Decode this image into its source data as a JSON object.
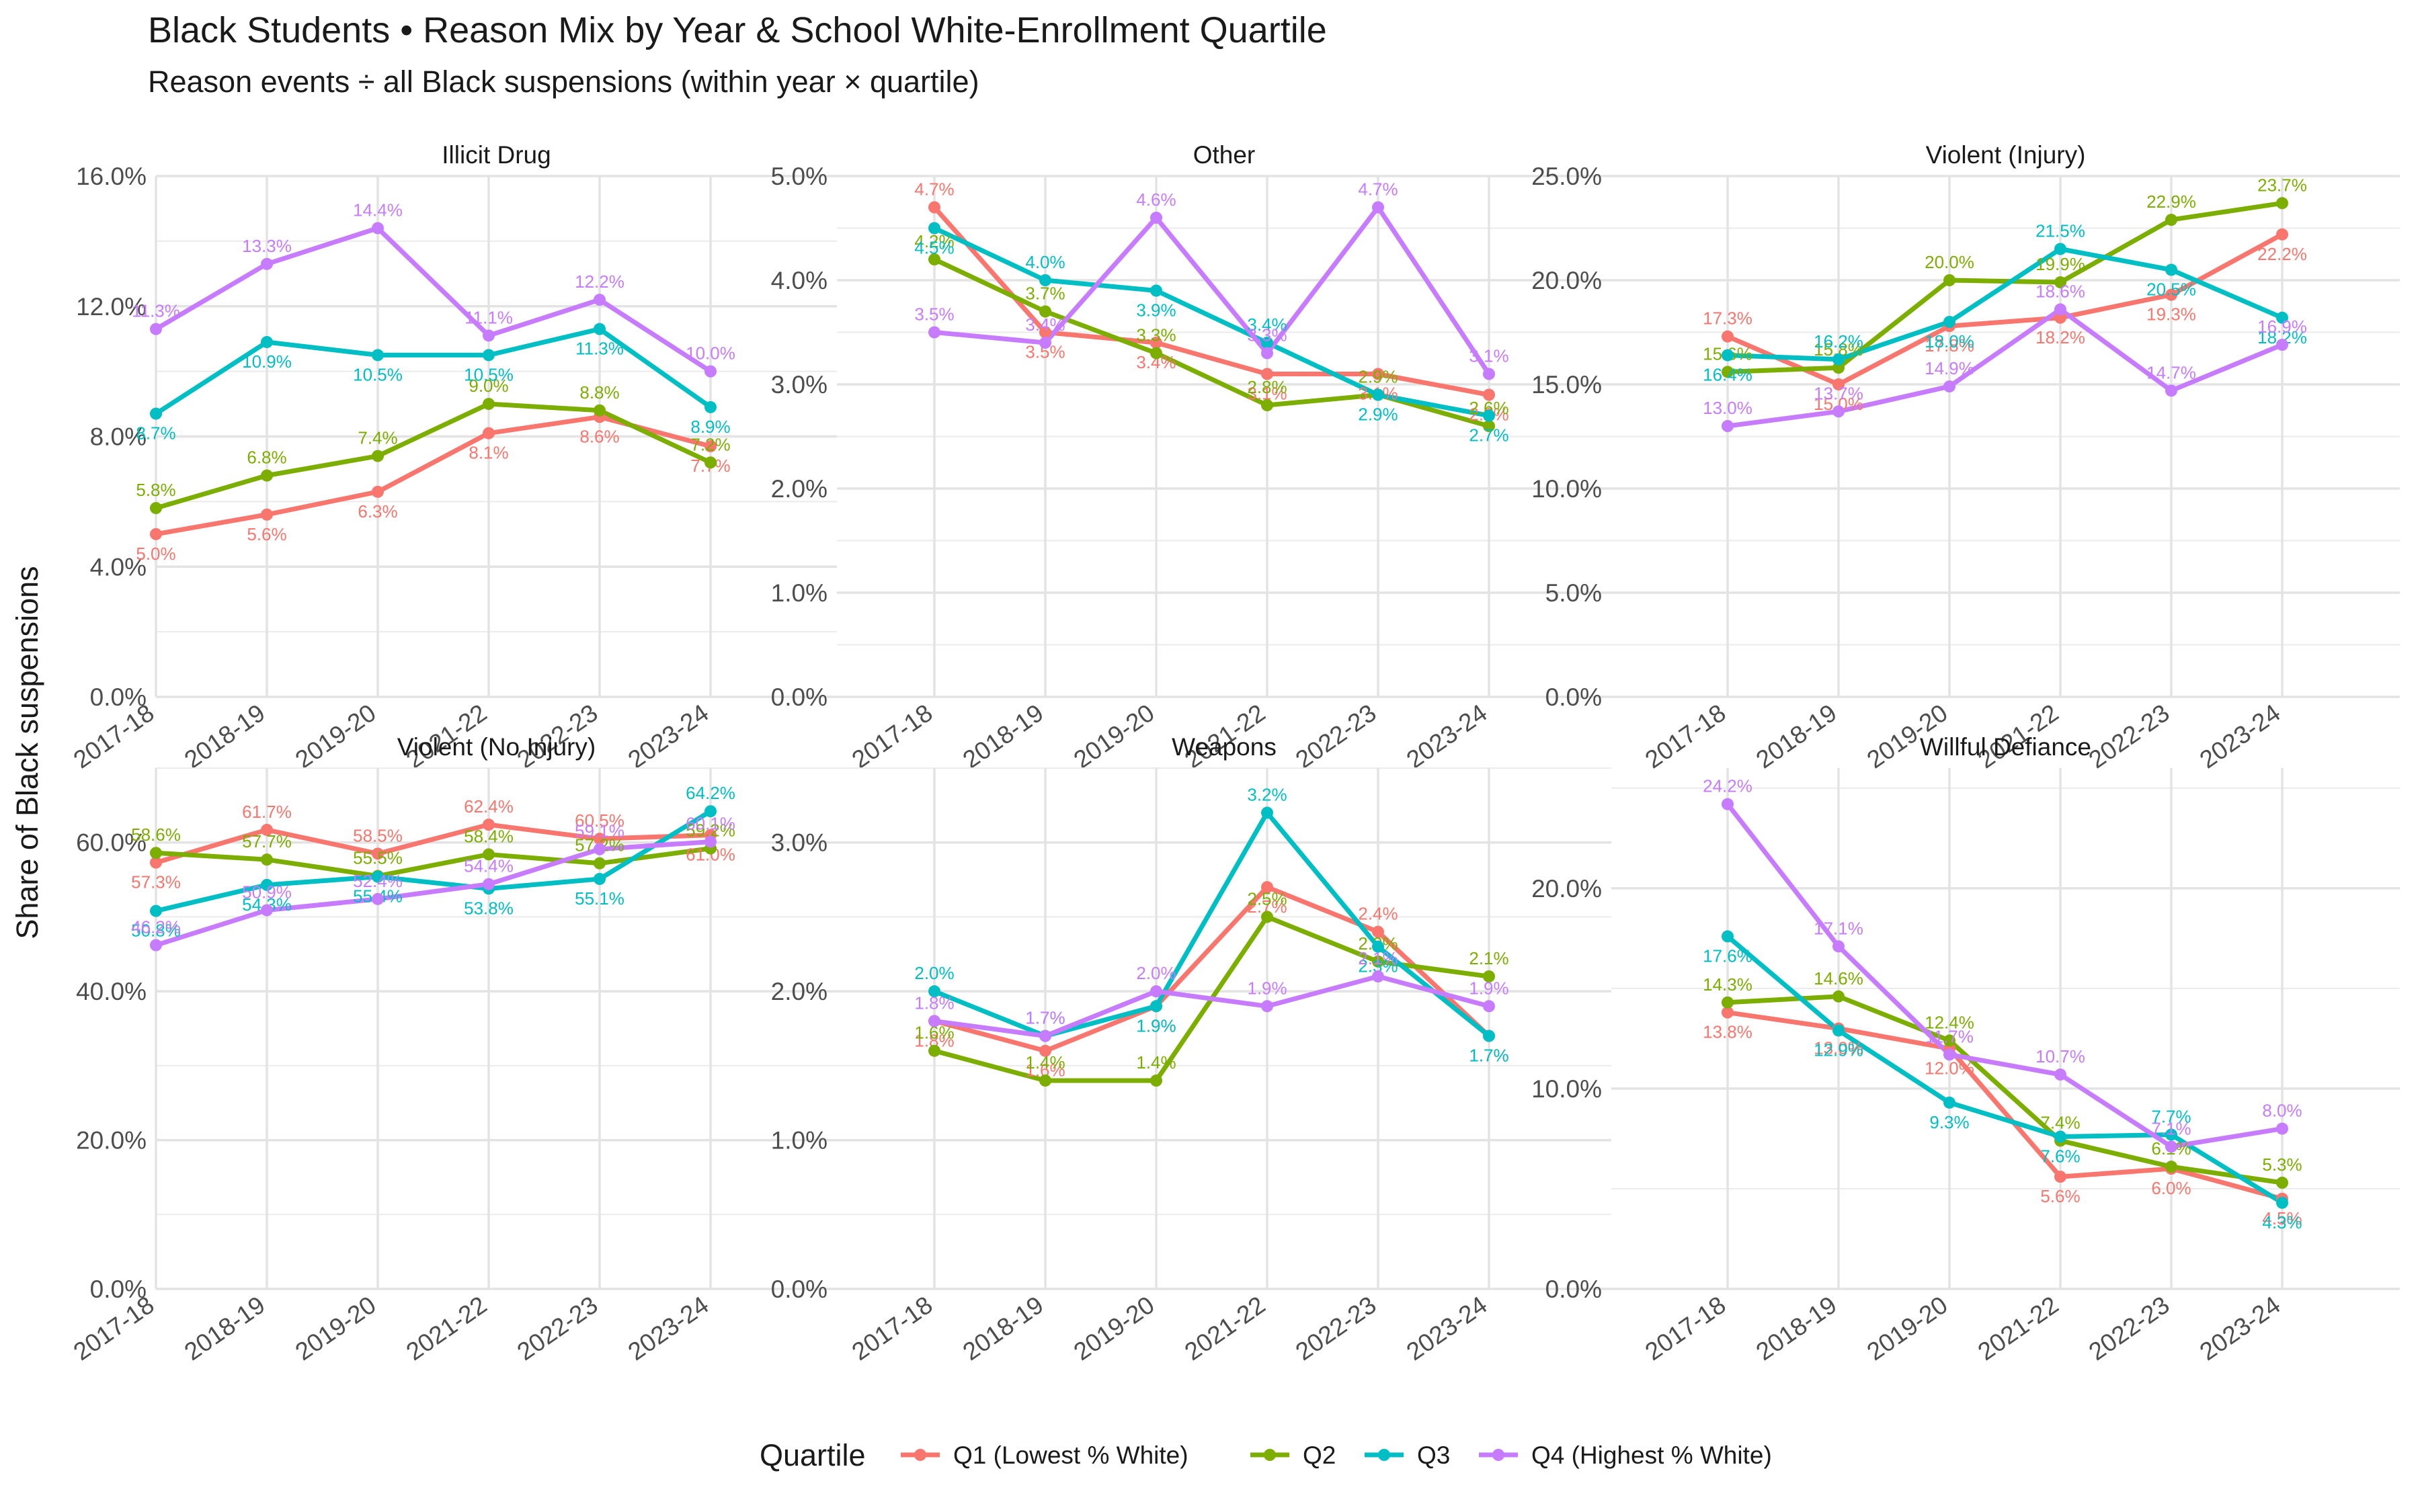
{
  "title": "Black Students • Reason Mix by Year & School White-Enrollment Quartile",
  "subtitle": "Reason events ÷ all Black suspensions (within year × quartile)",
  "chart_data": {
    "type": "line",
    "ylabel": "Share of Black suspensions",
    "x": [
      "2017-18",
      "2018-19",
      "2019-20",
      "2021-22",
      "2022-23",
      "2023-24"
    ],
    "legend": {
      "title": "Quartile",
      "placement": "bottom",
      "items": [
        {
          "name": "Q1 (Lowest % White)",
          "color": "#F8766D"
        },
        {
          "name": "Q2",
          "color": "#7CAE00"
        },
        {
          "name": "Q3",
          "color": "#00BFC4"
        },
        {
          "name": "Q4 (Highest % White)",
          "color": "#C77CFF"
        }
      ]
    },
    "panels": [
      {
        "name": "Illicit Drug",
        "ylim": [
          0,
          0.16
        ],
        "yticks": [
          0,
          0.04,
          0.08,
          0.12,
          0.16
        ],
        "ytick_labels": [
          "0.0%",
          "4.0%",
          "8.0%",
          "12.0%",
          "16.0%"
        ],
        "series": [
          {
            "values": [
              0.05,
              0.056,
              0.063,
              0.081,
              0.086,
              0.077
            ],
            "labels": [
              "5.0%",
              "5.6%",
              "6.3%",
              "8.1%",
              "8.6%",
              "7.7%"
            ]
          },
          {
            "values": [
              0.058,
              0.068,
              0.074,
              0.09,
              0.088,
              0.072
            ],
            "labels": [
              "5.8%",
              "6.8%",
              "7.4%",
              "9.0%",
              "8.8%",
              "7.2%"
            ]
          },
          {
            "values": [
              0.087,
              0.109,
              0.105,
              0.105,
              0.113,
              0.089
            ],
            "labels": [
              "8.7%",
              "10.9%",
              "10.5%",
              "10.5%",
              "11.3%",
              "8.9%"
            ]
          },
          {
            "values": [
              0.113,
              0.133,
              0.144,
              0.111,
              0.122,
              0.1
            ],
            "labels": [
              "11.3%",
              "13.3%",
              "14.4%",
              "11.1%",
              "12.2%",
              "10.0%"
            ]
          }
        ]
      },
      {
        "name": "Other",
        "ylim": [
          0,
          0.05
        ],
        "yticks": [
          0,
          0.01,
          0.02,
          0.03,
          0.04,
          0.05
        ],
        "ytick_labels": [
          "0.0%",
          "1.0%",
          "2.0%",
          "3.0%",
          "4.0%",
          "5.0%"
        ],
        "series": [
          {
            "values": [
              0.047,
              0.035,
              0.034,
              0.031,
              0.031,
              0.029
            ],
            "labels": [
              "4.7%",
              "3.5%",
              "3.4%",
              "3.1%",
              "3.1%",
              "2.9%"
            ]
          },
          {
            "values": [
              0.042,
              0.037,
              0.033,
              0.028,
              0.029,
              0.026
            ],
            "labels": [
              "4.2%",
              "3.7%",
              "3.3%",
              "2.8%",
              "2.9%",
              "2.6%"
            ]
          },
          {
            "values": [
              0.045,
              0.04,
              0.039,
              0.034,
              0.029,
              0.027
            ],
            "labels": [
              "4.5%",
              "4.0%",
              "3.9%",
              "3.4%",
              "2.9%",
              "2.7%"
            ]
          },
          {
            "values": [
              0.035,
              0.034,
              0.046,
              0.033,
              0.047,
              0.031
            ],
            "labels": [
              "3.5%",
              "3.4%",
              "4.6%",
              "3.3%",
              "4.7%",
              "3.1%"
            ]
          }
        ]
      },
      {
        "name": "Violent (Injury)",
        "ylim": [
          0,
          0.25
        ],
        "yticks": [
          0,
          0.05,
          0.1,
          0.15,
          0.2,
          0.25
        ],
        "ytick_labels": [
          "0.0%",
          "5.0%",
          "10.0%",
          "15.0%",
          "20.0%",
          "25.0%"
        ],
        "series": [
          {
            "values": [
              0.173,
              0.15,
              0.178,
              0.182,
              0.193,
              0.222
            ],
            "labels": [
              "17.3%",
              "15.0%",
              "17.8%",
              "18.2%",
              "19.3%",
              "22.2%"
            ]
          },
          {
            "values": [
              0.156,
              0.158,
              0.2,
              0.199,
              0.229,
              0.237
            ],
            "labels": [
              "15.6%",
              "15.8%",
              "20.0%",
              "19.9%",
              "22.9%",
              "23.7%"
            ]
          },
          {
            "values": [
              0.164,
              0.162,
              0.18,
              0.215,
              0.205,
              0.182
            ],
            "labels": [
              "16.4%",
              "16.2%",
              "18.0%",
              "21.5%",
              "20.5%",
              "18.2%"
            ]
          },
          {
            "values": [
              0.13,
              0.137,
              0.149,
              0.186,
              0.147,
              0.169
            ],
            "labels": [
              "13.0%",
              "13.7%",
              "14.9%",
              "18.6%",
              "14.7%",
              "16.9%"
            ]
          }
        ]
      },
      {
        "name": "Violent (No Injury)",
        "ylim": [
          0,
          0.7
        ],
        "yticks": [
          0,
          0.2,
          0.4,
          0.6
        ],
        "ytick_labels": [
          "0.0%",
          "20.0%",
          "40.0%",
          "60.0%"
        ],
        "series": [
          {
            "values": [
              0.573,
              0.617,
              0.585,
              0.624,
              0.605,
              0.61
            ],
            "labels": [
              "57.3%",
              "61.7%",
              "58.5%",
              "62.4%",
              "60.5%",
              "61.0%"
            ]
          },
          {
            "values": [
              0.586,
              0.577,
              0.555,
              0.584,
              0.572,
              0.592
            ],
            "labels": [
              "58.6%",
              "57.7%",
              "55.5%",
              "58.4%",
              "57.2%",
              "59.2%"
            ]
          },
          {
            "values": [
              0.508,
              0.543,
              0.554,
              0.538,
              0.551,
              0.642
            ],
            "labels": [
              "50.8%",
              "54.3%",
              "55.4%",
              "53.8%",
              "55.1%",
              "64.2%"
            ]
          },
          {
            "values": [
              0.462,
              0.509,
              0.524,
              0.544,
              0.591,
              0.601
            ],
            "labels": [
              "46.2%",
              "50.9%",
              "52.4%",
              "54.4%",
              "59.1%",
              "60.1%"
            ]
          }
        ]
      },
      {
        "name": "Weapons",
        "ylim": [
          0,
          0.035
        ],
        "yticks": [
          0,
          0.01,
          0.02,
          0.03
        ],
        "ytick_labels": [
          "0.0%",
          "1.0%",
          "2.0%",
          "3.0%"
        ],
        "series": [
          {
            "values": [
              0.018,
              0.016,
              0.019,
              0.027,
              0.024,
              0.017
            ],
            "labels": [
              "1.8%",
              "1.6%",
              "1.9%",
              "2.7%",
              "2.4%",
              "1.7%"
            ]
          },
          {
            "values": [
              0.016,
              0.014,
              0.014,
              0.025,
              0.022,
              0.021
            ],
            "labels": [
              "1.6%",
              "1.4%",
              "1.4%",
              "2.5%",
              "2.2%",
              "2.1%"
            ]
          },
          {
            "values": [
              0.02,
              0.017,
              0.019,
              0.032,
              0.023,
              0.017
            ],
            "labels": [
              "2.0%",
              "1.7%",
              "1.9%",
              "3.2%",
              "2.3%",
              "1.7%"
            ]
          },
          {
            "values": [
              0.018,
              0.017,
              0.02,
              0.019,
              0.021,
              0.019
            ],
            "labels": [
              "1.8%",
              "1.7%",
              "2.0%",
              "1.9%",
              "2.1%",
              "1.9%"
            ]
          }
        ]
      },
      {
        "name": "Willful Defiance",
        "ylim": [
          0,
          0.26
        ],
        "yticks": [
          0,
          0.1,
          0.2
        ],
        "ytick_labels": [
          "0.0%",
          "10.0%",
          "20.0%"
        ],
        "series": [
          {
            "values": [
              0.138,
              0.13,
              0.12,
              0.056,
              0.06,
              0.045
            ],
            "labels": [
              "13.8%",
              "13.0%",
              "12.0%",
              "5.6%",
              "6.0%",
              "4.5%"
            ]
          },
          {
            "values": [
              0.143,
              0.146,
              0.124,
              0.074,
              0.061,
              0.053
            ],
            "labels": [
              "14.3%",
              "14.6%",
              "12.4%",
              "7.4%",
              "6.1%",
              "5.3%"
            ]
          },
          {
            "values": [
              0.176,
              0.129,
              0.093,
              0.076,
              0.077,
              0.043
            ],
            "labels": [
              "17.6%",
              "12.9%",
              "9.3%",
              "7.6%",
              "7.7%",
              "4.3%"
            ]
          },
          {
            "values": [
              0.242,
              0.171,
              0.117,
              0.107,
              0.071,
              0.08
            ],
            "labels": [
              "24.2%",
              "17.1%",
              "11.7%",
              "10.7%",
              "7.1%",
              "8.0%"
            ]
          }
        ]
      }
    ]
  }
}
